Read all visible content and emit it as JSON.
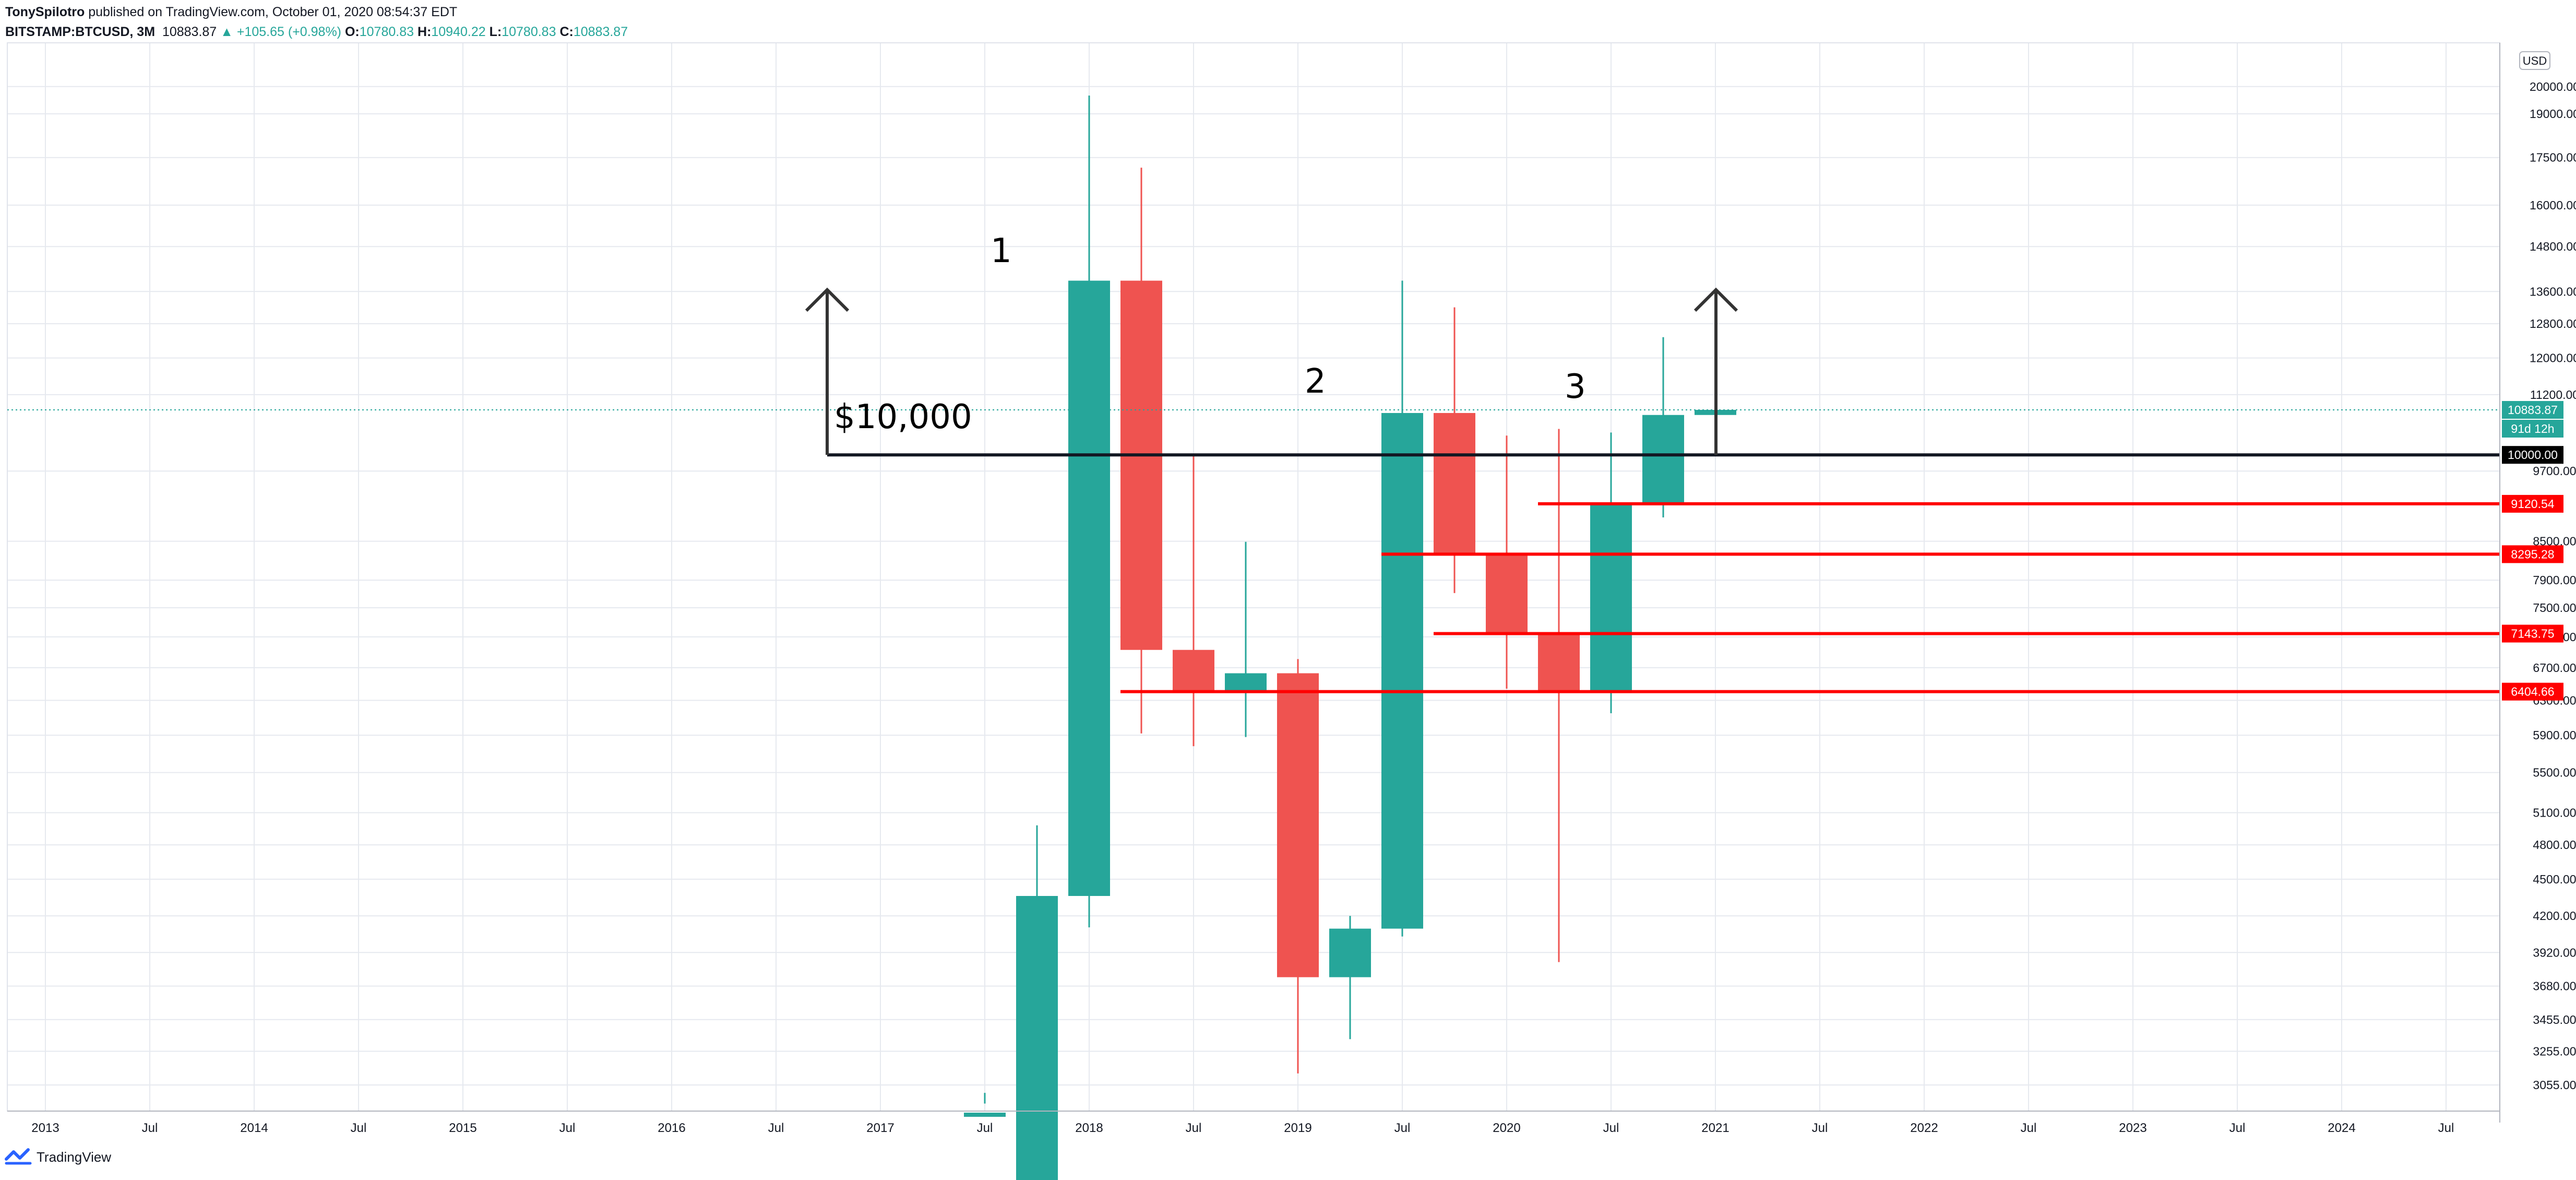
{
  "header": {
    "author": "TonySpilotro",
    "published": "published on TradingView.com, October 01, 2020 08:54:37 EDT",
    "symbol": "BITSTAMP:BTCUSD, 3M",
    "last": "10883.87",
    "change": "▲ +105.65 (+0.98%)",
    "o_label": "O:",
    "o": "10780.83",
    "h_label": "H:",
    "h": "10940.22",
    "l_label": "L:",
    "l": "10780.83",
    "c_label": "C:",
    "c": "10883.87"
  },
  "footer": {
    "brand": "TradingView"
  },
  "colors": {
    "up": "#26a69a",
    "down": "#ef5350",
    "level": "#ff0000",
    "annotation": "#131722",
    "grid": "#e6e9ef"
  },
  "chart_data": {
    "type": "candlestick",
    "scale": "log",
    "ylim": [
      2980,
      21500
    ],
    "currency_badge": "USD",
    "x_tick_labels": [
      "2013",
      "Jul",
      "2014",
      "Jul",
      "2015",
      "Jul",
      "2016",
      "Jul",
      "2017",
      "Jul",
      "2018",
      "Jul",
      "2019",
      "Jul",
      "2020",
      "Jul",
      "2021",
      "Jul",
      "2022",
      "Jul",
      "2023",
      "Jul",
      "2024",
      "Jul"
    ],
    "y_tick_labels": [
      "3055.00",
      "3255.00",
      "3455.00",
      "3680.00",
      "3920.00",
      "4200.00",
      "4500.00",
      "4800.00",
      "5100.00",
      "5500.00",
      "5900.00",
      "6300.00",
      "6700.00",
      "7100.00",
      "7500.00",
      "7900.00",
      "8500.00",
      "9700.00",
      "11200.00",
      "12000.00",
      "12800.00",
      "13600.00",
      "14800.00",
      "16000.00",
      "17500.00",
      "19000.00",
      "20000.00"
    ],
    "candles": [
      {
        "period": "2017 Q2",
        "open": 2900,
        "high": 3010,
        "low": 2900,
        "close": 2900
      },
      {
        "period": "2017 Q3",
        "open": 2500,
        "high": 4980,
        "low": 2500,
        "close": 4360
      },
      {
        "period": "2017 Q4",
        "open": 4360,
        "high": 19666,
        "low": 4110,
        "close": 13880
      },
      {
        "period": "2018 Q1",
        "open": 13880,
        "high": 17170,
        "low": 5920,
        "close": 6928
      },
      {
        "period": "2018 Q2",
        "open": 6928,
        "high": 9990,
        "low": 5780,
        "close": 6390
      },
      {
        "period": "2018 Q3",
        "open": 6390,
        "high": 8490,
        "low": 5880,
        "close": 6630
      },
      {
        "period": "2018 Q4",
        "open": 6630,
        "high": 6810,
        "low": 3122,
        "close": 3742
      },
      {
        "period": "2019 Q1",
        "open": 3742,
        "high": 4200,
        "low": 3330,
        "close": 4100
      },
      {
        "period": "2019 Q2",
        "open": 4100,
        "high": 13880,
        "low": 4040,
        "close": 10820
      },
      {
        "period": "2019 Q3",
        "open": 10820,
        "high": 13200,
        "low": 7710,
        "close": 8295
      },
      {
        "period": "2019 Q4",
        "open": 8295,
        "high": 10370,
        "low": 6440,
        "close": 7144
      },
      {
        "period": "2020 Q1",
        "open": 7144,
        "high": 10500,
        "low": 3850,
        "close": 6405
      },
      {
        "period": "2020 Q2",
        "open": 6405,
        "high": 10430,
        "low": 6150,
        "close": 9120
      },
      {
        "period": "2020 Q3",
        "open": 9120,
        "high": 12480,
        "low": 8890,
        "close": 10780
      },
      {
        "period": "2020 Q4",
        "open": 10780,
        "high": 10940,
        "low": 10780,
        "close": 10883.87
      }
    ],
    "price_labels": [
      {
        "text": "10883.87",
        "kind": "last"
      },
      {
        "text": "91d 12h",
        "kind": "countdown"
      },
      {
        "text": "10000.00",
        "kind": "level-black"
      },
      {
        "text": "9120.54",
        "kind": "level-red"
      },
      {
        "text": "8295.28",
        "kind": "level-red"
      },
      {
        "text": "7143.75",
        "kind": "level-red"
      },
      {
        "text": "6404.66",
        "kind": "level-red"
      }
    ],
    "annotations": {
      "label_1": "1",
      "label_2": "2",
      "label_3": "3",
      "level_text": "$10,000",
      "level_value": 10000
    },
    "support_levels": [
      9120.54,
      8295.28,
      7143.75,
      6404.66
    ]
  }
}
